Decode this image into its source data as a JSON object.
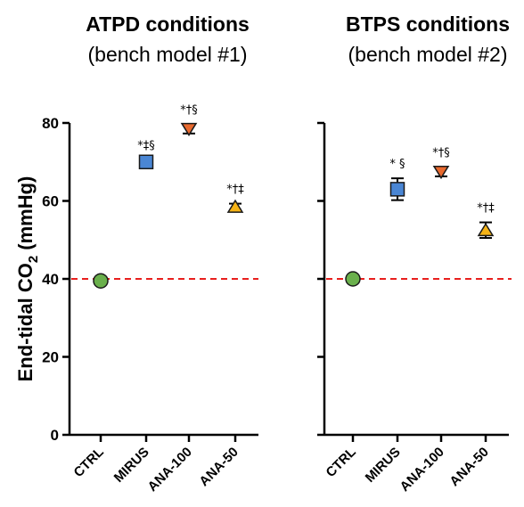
{
  "chart_data": [
    {
      "type": "scatter",
      "title": "ATPD conditions",
      "subtitle": "(bench model #1)",
      "ylabel": "End-tidal CO₂ (mmHg)",
      "ylim": [
        0,
        80
      ],
      "yticks": [
        0,
        20,
        40,
        60,
        80
      ],
      "reference_line": {
        "y": 40,
        "color": "#e8201e",
        "style": "dashed"
      },
      "categories": [
        "CTRL",
        "MIRUS",
        "ANA-100",
        "ANA-50"
      ],
      "points": [
        {
          "category": "CTRL",
          "y": 39.5,
          "err": 0,
          "marker": "circle",
          "color": "#6ab04c",
          "sig": ""
        },
        {
          "category": "MIRUS",
          "y": 70,
          "err": 0.5,
          "marker": "square",
          "color": "#4a86d4",
          "sig": "*‡§"
        },
        {
          "category": "ANA-100",
          "y": 78.5,
          "err": 1.2,
          "marker": "triangle-down",
          "color": "#e8692e",
          "sig": "*†§"
        },
        {
          "category": "ANA-50",
          "y": 58.5,
          "err": 0.8,
          "marker": "triangle-up",
          "color": "#f5b316",
          "sig": "*†‡"
        }
      ]
    },
    {
      "type": "scatter",
      "title": "BTPS conditions",
      "subtitle": "(bench model #2)",
      "ylim": [
        0,
        80
      ],
      "yticks": [
        0,
        20,
        40,
        60,
        80
      ],
      "reference_line": {
        "y": 40,
        "color": "#e8201e",
        "style": "dashed"
      },
      "categories": [
        "CTRL",
        "MIRUS",
        "ANA-100",
        "ANA-50"
      ],
      "points": [
        {
          "category": "CTRL",
          "y": 40,
          "err": 0,
          "marker": "circle",
          "color": "#6ab04c",
          "sig": ""
        },
        {
          "category": "MIRUS",
          "y": 63,
          "err": 2.8,
          "marker": "square",
          "color": "#4a86d4",
          "sig": "* §"
        },
        {
          "category": "ANA-100",
          "y": 67.5,
          "err": 1.2,
          "marker": "triangle-down",
          "color": "#e8692e",
          "sig": "*†§"
        },
        {
          "category": "ANA-50",
          "y": 52.5,
          "err": 2.0,
          "marker": "triangle-up",
          "color": "#f5b316",
          "sig": "*†‡"
        }
      ]
    }
  ]
}
